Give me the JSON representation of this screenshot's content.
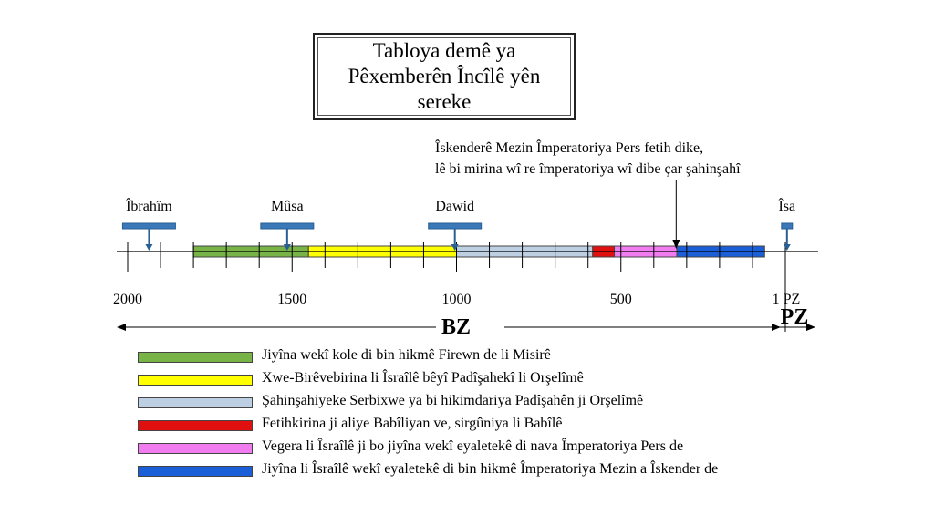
{
  "title_lines": [
    "Tabloya demê ya",
    "Pêxemberên Încîlê yên",
    "sereke"
  ],
  "annotation": {
    "lines": [
      "Îskenderê Mezin Împeratoriya Pers fetih dike,",
      "lê bi mirina wî re împeratoriya wî dibe çar şahinşahî"
    ],
    "year": 332
  },
  "axis": {
    "ticks": [
      2000,
      1500,
      1000,
      500
    ],
    "end_label": "1 PZ",
    "bz_label": "BZ",
    "pz_label": "PZ"
  },
  "people": [
    {
      "name": "Îbrahîm",
      "year": 1935
    },
    {
      "name": "Mûsa",
      "year": 1515
    },
    {
      "name": "Dawid",
      "year": 1005
    },
    {
      "name": "Îsa",
      "year": -5
    }
  ],
  "periods": [
    {
      "start": 1800,
      "end": 1450,
      "color": "#77b347",
      "label": "Jiyîna wekî kole di bin hikmê Firewn de li Misirê"
    },
    {
      "start": 1450,
      "end": 1000,
      "color": "#ffff00",
      "label": "Xwe-Birêvebirina li Îsraîlê bêyî Padîşahekî li Orşelîmê"
    },
    {
      "start": 1000,
      "end": 586,
      "color": "#bdd0e3",
      "label": "Şahinşahiyeke Serbixwe ya bi hikimdariya Padîşahên ji Orşelîmê"
    },
    {
      "start": 586,
      "end": 520,
      "color": "#e01010",
      "label": "Fetihkirina ji aliye Babîliyan ve, sirgûniya li Babîlê"
    },
    {
      "start": 520,
      "end": 330,
      "color": "#f07cf0",
      "label": "Vegera li Îsraîlê ji bo jiyîna wekî eyaletekê di nava Împeratoriya Pers de"
    },
    {
      "start": 330,
      "end": 63,
      "color": "#1a5ed8",
      "label": "Jiyîna li Îsraîlê wekî eyaletekê di bin hikmê Împeratoriya Mezin a Îskender de"
    }
  ]
}
